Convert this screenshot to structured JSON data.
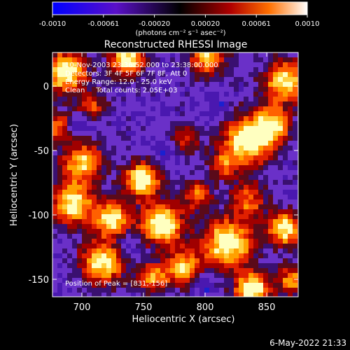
{
  "colorbar": {
    "ticks": [
      "-0.0010",
      "-0.00061",
      "-0.00020",
      "0.00020",
      "0.00061",
      "0.0010"
    ],
    "unit_label": "(photons cm⁻² s⁻¹ asec⁻²)"
  },
  "plot": {
    "title": "Reconstructed RHESSI Image",
    "xlabel": "Heliocentric X (arcsec)",
    "ylabel": "Heliocentric Y (arcsec)",
    "x_ticks": [
      "700",
      "750",
      "800",
      "850"
    ],
    "y_ticks": [
      "0",
      "-50",
      "-100",
      "-150"
    ],
    "info_lines": [
      "10-Nov-2003 23:36:52.000 to 23:38:00.000",
      "Detectors: 3F 4F 5F 6F 7F 8F, Att 0",
      "Energy Range: 12.0 - 25.0 keV",
      "Clean     Total counts: 2.05E+03"
    ],
    "peak_label": "Position of Peak = [831,-156]"
  },
  "footer": {
    "timestamp": "6-May-2022 21:33"
  }
}
